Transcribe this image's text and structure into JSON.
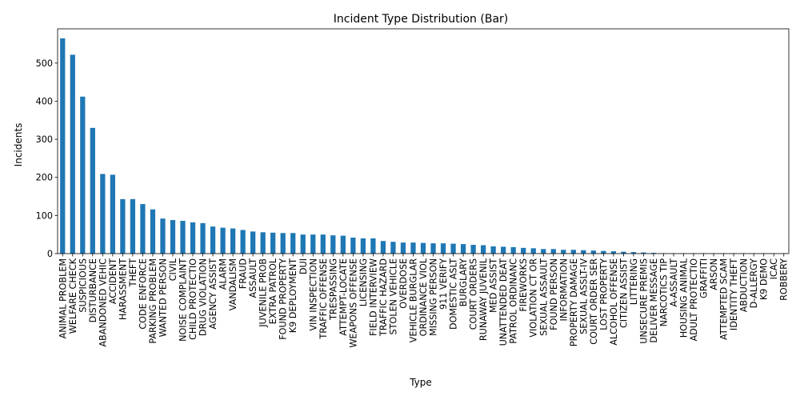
{
  "chart_data": {
    "type": "bar",
    "title": "Incident Type Distribution (Bar)",
    "xlabel": "Type",
    "ylabel": "Incidents",
    "ylim": [
      0,
      590
    ],
    "yticks": [
      0,
      100,
      200,
      300,
      400,
      500
    ],
    "grid": false,
    "legend": "none",
    "bar_color": "#1f77b4",
    "categories": [
      "ANIMAL PROBLEM",
      "WELFARE CHECK",
      "SUSPICIOUS",
      "DISTURBANCE",
      "ABANDONED VEHIC",
      "ACCIDENT",
      "HARASSMENT",
      "THEFT",
      "CODE ENFORCE",
      "PARKING PROBLEM",
      "WANTED PERSON",
      "CIVIL",
      "NOISE COMPLAINT",
      "CHILD PROTECTIO",
      "DRUG VIOLATION",
      "AGENCY ASSIST",
      "ALARM",
      "VANDALISM",
      "FRAUD",
      "ASSAULT",
      "JUVENILE PROB",
      "EXTRA PATROL",
      "FOUND PROPERTY",
      "K9 DEPLOYMENT",
      "DUI",
      "VIN INSPECTION",
      "TRAFFIC OFFENSE",
      "TRESPASSING",
      "ATTEMPT-LOCATE",
      "WEAPONS OFFENSE",
      "LICENSING",
      "FIELD INTERVIEW",
      "TRAFFIC HAZARD",
      "STOLEN VEHICLE",
      "OVERDOSE",
      "VEHICLE BURGLAR",
      "ORDINANCE VIOL",
      "MISSING PERSON",
      "911 VERIFY",
      "DOMESTIC ASLT",
      "BURGLARY",
      "COURT ORDERS",
      "RUNAWAY JUVENIL",
      "MED ASSIST",
      "UNATTENDED DEAT",
      "PATROL ORDINANC",
      "FIREWORKS",
      "VIOLATION CT OR",
      "SEXUAL ASSAULT",
      "FOUND PERSON",
      "INFORMATION",
      "PROPERTY DAMAGE",
      "SEXUAL ASSLT-IV",
      "COURT ORDER SER",
      "LOST PROPERTY",
      "ALCOHOL OFFENSE",
      "CITIZEN ASSIST",
      "LITTERING",
      "UNSECURE PREMIS",
      "DELIVER MESSAGE",
      "NARCOTICS TIP",
      "A-ASSAULT",
      "HOUSING ANIMAL",
      "ADULT PROTECTIO",
      "GRAFFITI",
      "ARSON",
      "ATTEMPTED SCAM",
      "IDENTITY THEFT",
      "ABDUCTION",
      "D-ALLERGY",
      "K9 DEMO",
      "ICAC",
      "ROBBERY"
    ],
    "values": [
      565,
      522,
      412,
      330,
      209,
      207,
      143,
      143,
      130,
      116,
      92,
      88,
      86,
      82,
      80,
      71,
      68,
      66,
      62,
      58,
      56,
      55,
      54,
      54,
      50,
      50,
      50,
      48,
      47,
      42,
      40,
      40,
      33,
      31,
      29,
      29,
      28,
      27,
      27,
      26,
      25,
      23,
      22,
      19,
      18,
      17,
      15,
      14,
      12,
      12,
      10,
      10,
      9,
      8,
      7,
      6,
      5,
      4,
      3,
      2,
      1,
      1,
      1,
      1,
      1,
      1,
      1,
      1,
      1,
      1,
      1,
      1,
      1
    ]
  }
}
